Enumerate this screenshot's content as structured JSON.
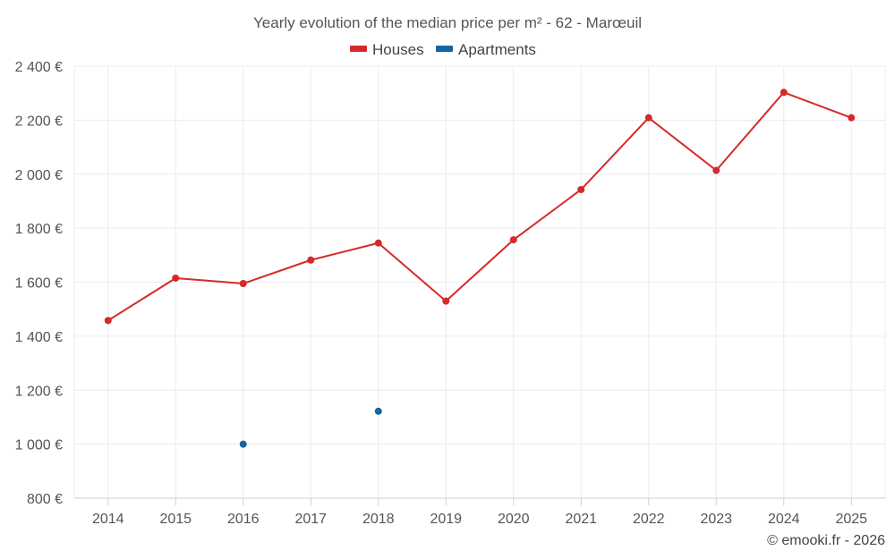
{
  "chart_data": {
    "type": "line",
    "title": "Yearly evolution of the median price per m² - 62 - Marœuil",
    "categories": [
      "2014",
      "2015",
      "2016",
      "2017",
      "2018",
      "2019",
      "2020",
      "2021",
      "2022",
      "2023",
      "2024",
      "2025"
    ],
    "series": [
      {
        "name": "Houses",
        "color": "#d42a2a",
        "values": [
          1458,
          1615,
          1595,
          1682,
          1745,
          1530,
          1757,
          1943,
          2209,
          2014,
          2303,
          2209
        ]
      },
      {
        "name": "Apartments",
        "color": "#1565a0",
        "values": [
          null,
          null,
          1000,
          null,
          1122,
          null,
          null,
          null,
          null,
          null,
          null,
          null
        ]
      }
    ],
    "yticks": [
      800,
      1000,
      1200,
      1400,
      1600,
      1800,
      2000,
      2200,
      2400
    ],
    "ytick_labels": [
      "800 €",
      "1 000 €",
      "1 200 €",
      "1 400 €",
      "1 600 €",
      "1 800 €",
      "2 000 €",
      "2 200 €",
      "2 400 €"
    ],
    "ylim": [
      800,
      2400
    ],
    "xlabel": "",
    "ylabel": "",
    "grid": true,
    "legend_position": "top-center"
  },
  "credit": "© emooki.fr - 2026"
}
